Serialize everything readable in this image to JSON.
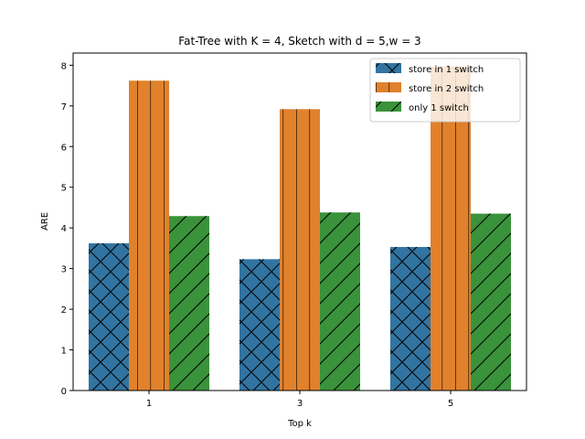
{
  "chart_data": {
    "type": "bar",
    "title": "Fat-Tree with K = 4, Sketch with d = 5,w = 3",
    "xlabel": "Top k",
    "ylabel": "ARE",
    "categories": [
      "1",
      "3",
      "5"
    ],
    "ylim": [
      0,
      8.3
    ],
    "yticks": [
      0,
      1,
      2,
      3,
      4,
      5,
      6,
      7,
      8
    ],
    "grid": false,
    "legend_position": "top-right",
    "series": [
      {
        "name": "store in 1 switch",
        "values": [
          3.62,
          3.23,
          3.53
        ],
        "color": "#3274a1",
        "hatch": "crosshatch"
      },
      {
        "name": "store in 2 switch",
        "values": [
          7.62,
          6.92,
          7.97
        ],
        "color": "#e1812c",
        "hatch": "vertical"
      },
      {
        "name": "only 1 switch",
        "values": [
          4.29,
          4.38,
          4.35
        ],
        "color": "#3a923a",
        "hatch": "diagonal"
      }
    ]
  }
}
